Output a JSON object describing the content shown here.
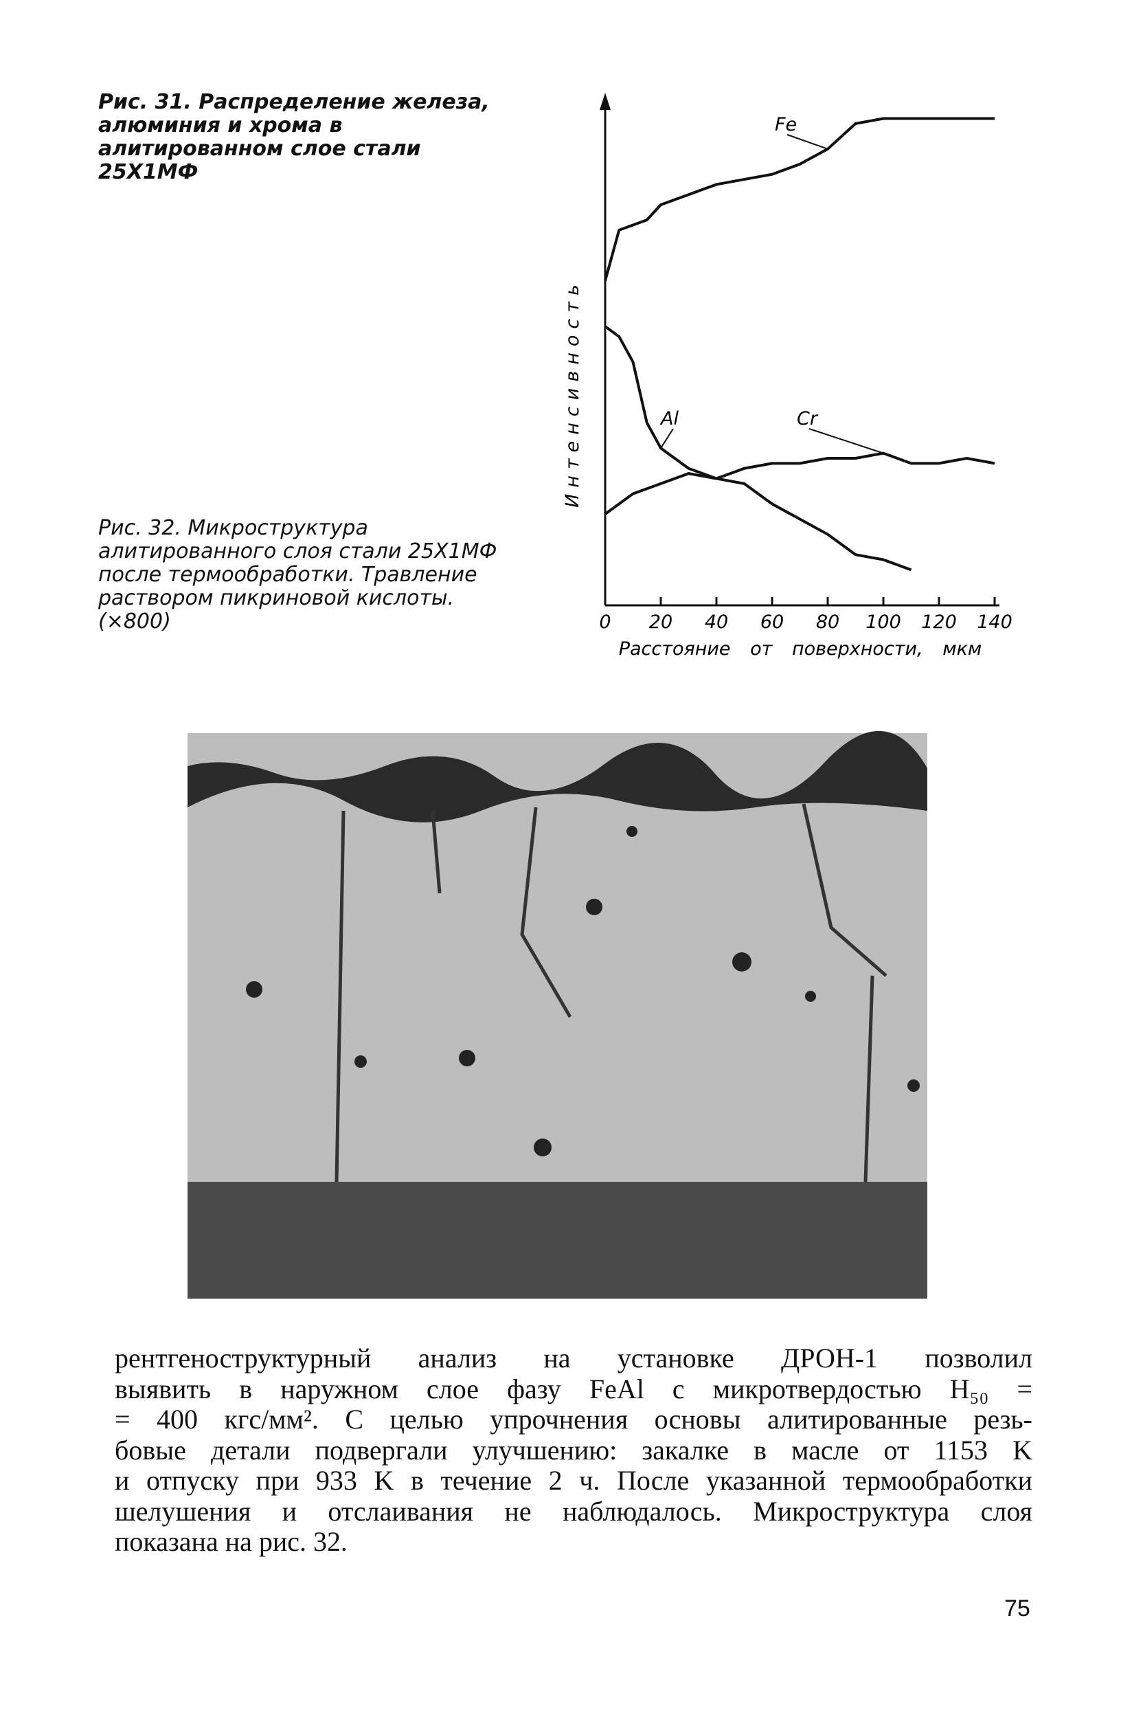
{
  "fig31_caption": "Рис. 31. Распределение железа, алюминия и хрома в алитированном слое стали 25Х1МФ",
  "chart_data": {
    "type": "line",
    "ylabel": "Интенсивность",
    "xlabel": "Расстояние от поверхности, мкм",
    "x": [
      0,
      5,
      10,
      15,
      20,
      30,
      40,
      50,
      60,
      70,
      80,
      90,
      100,
      110,
      120,
      130,
      140
    ],
    "xlim": [
      0,
      140
    ],
    "xticks": [
      0,
      20,
      40,
      60,
      80,
      100,
      120,
      140
    ],
    "ylim": [
      0,
      100
    ],
    "series": [
      {
        "name": "Fe",
        "color": "#111111",
        "values": [
          64,
          74,
          75,
          76,
          79,
          81,
          83,
          84,
          85,
          87,
          90,
          95,
          96,
          96,
          96,
          96,
          96
        ]
      },
      {
        "name": "Al",
        "color": "#111111",
        "values": [
          55,
          53,
          48,
          36,
          31,
          27,
          25,
          24,
          20,
          17,
          14,
          10,
          9,
          7,
          null,
          null,
          null
        ]
      },
      {
        "name": "Cr",
        "color": "#111111",
        "values": [
          18,
          20,
          22,
          23,
          24,
          26,
          25,
          27,
          28,
          28,
          29,
          29,
          30,
          28,
          28,
          29,
          28
        ]
      }
    ]
  },
  "fig32_caption": "Рис. 32. Микроструктура алитированного слоя стали 25Х1МФ после термообработки. Травление раствором пикриновой кислоты. (×800)",
  "body_lines": [
    "рентгеноструктурный анализ на установке ДРОН-1 позволил",
    "выявить в наружном слое фазу FeAl с микротвердостью H₅₀ =",
    "= 400 кгс/мм². С целью упрочнения основы алитированные резь-",
    "бовые детали подвергали улучшению: закалке в масле от 1153 K",
    "и отпуску при 933 K в течение 2 ч. После указанной термообработки",
    "шелушения и отслаивания не наблюдалось. Микроструктура слоя",
    "показана на рис. 32."
  ],
  "page_number": "75"
}
